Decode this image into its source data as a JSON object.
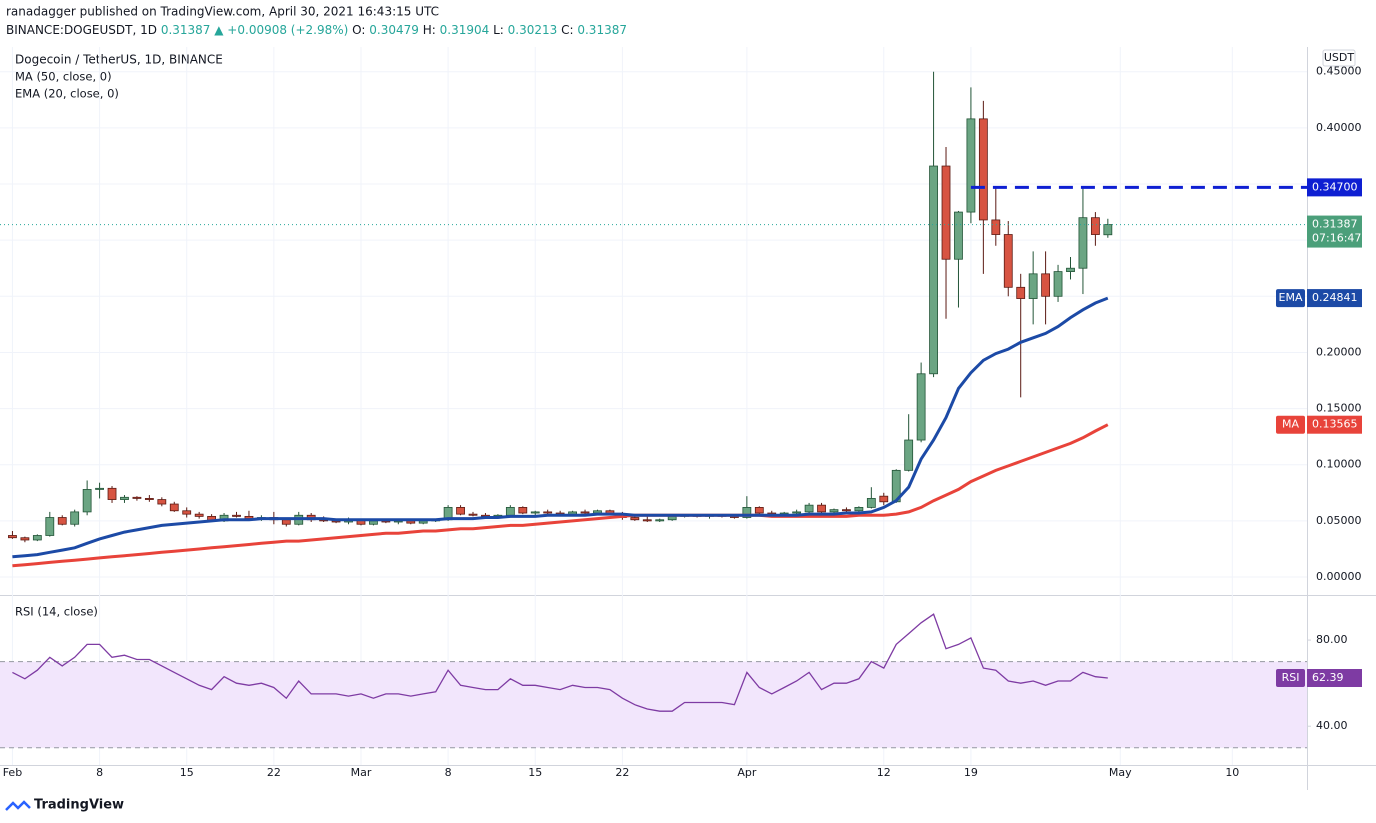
{
  "header": {
    "published": "ranadagger published on TradingView.com, April 30, 2021 16:43:15 UTC",
    "symbol": "BINANCE:DOGEUSDT, 1D",
    "last": "0.31387",
    "change": "▲ +0.00908 (+2.98%)",
    "ohlc": [
      {
        "key": "O:",
        "value": "0.30479"
      },
      {
        "key": "H:",
        "value": "0.31904"
      },
      {
        "key": "L:",
        "value": "0.30213"
      },
      {
        "key": "C:",
        "value": "0.31387"
      }
    ]
  },
  "footer": {
    "brand": "TradingView"
  },
  "chart_data": {
    "type": "candlestick",
    "title": "Dogecoin / TetherUS, 1D, BINANCE",
    "currency": "USDT",
    "up_color": "#6ba583",
    "down_color": "#d75442",
    "x": [
      "2021-02-01",
      "2021-02-02",
      "2021-02-03",
      "2021-02-04",
      "2021-02-05",
      "2021-02-06",
      "2021-02-07",
      "2021-02-08",
      "2021-02-09",
      "2021-02-10",
      "2021-02-11",
      "2021-02-12",
      "2021-02-13",
      "2021-02-14",
      "2021-02-15",
      "2021-02-16",
      "2021-02-17",
      "2021-02-18",
      "2021-02-19",
      "2021-02-20",
      "2021-02-21",
      "2021-02-22",
      "2021-02-23",
      "2021-02-24",
      "2021-02-25",
      "2021-02-26",
      "2021-02-27",
      "2021-02-28",
      "2021-03-01",
      "2021-03-02",
      "2021-03-03",
      "2021-03-04",
      "2021-03-05",
      "2021-03-06",
      "2021-03-07",
      "2021-03-08",
      "2021-03-09",
      "2021-03-10",
      "2021-03-11",
      "2021-03-12",
      "2021-03-13",
      "2021-03-14",
      "2021-03-15",
      "2021-03-16",
      "2021-03-17",
      "2021-03-18",
      "2021-03-19",
      "2021-03-20",
      "2021-03-21",
      "2021-03-22",
      "2021-03-23",
      "2021-03-24",
      "2021-03-25",
      "2021-03-26",
      "2021-03-27",
      "2021-03-28",
      "2021-03-29",
      "2021-03-30",
      "2021-03-31",
      "2021-04-01",
      "2021-04-02",
      "2021-04-03",
      "2021-04-04",
      "2021-04-05",
      "2021-04-06",
      "2021-04-07",
      "2021-04-08",
      "2021-04-09",
      "2021-04-10",
      "2021-04-11",
      "2021-04-12",
      "2021-04-13",
      "2021-04-14",
      "2021-04-15",
      "2021-04-16",
      "2021-04-17",
      "2021-04-18",
      "2021-04-19",
      "2021-04-20",
      "2021-04-21",
      "2021-04-22",
      "2021-04-23",
      "2021-04-24",
      "2021-04-25",
      "2021-04-26",
      "2021-04-27",
      "2021-04-28",
      "2021-04-29",
      "2021-04-30"
    ],
    "open": [
      0.037,
      0.035,
      0.033,
      0.037,
      0.053,
      0.047,
      0.058,
      0.078,
      0.079,
      0.069,
      0.071,
      0.07,
      0.069,
      0.065,
      0.059,
      0.056,
      0.054,
      0.05,
      0.055,
      0.054,
      0.052,
      0.053,
      0.051,
      0.047,
      0.055,
      0.051,
      0.05,
      0.049,
      0.051,
      0.047,
      0.05,
      0.049,
      0.05,
      0.048,
      0.05,
      0.051,
      0.062,
      0.056,
      0.055,
      0.054,
      0.055,
      0.062,
      0.057,
      0.058,
      0.057,
      0.056,
      0.058,
      0.057,
      0.059,
      0.056,
      0.053,
      0.051,
      0.05,
      0.051,
      0.054,
      0.055,
      0.054,
      0.055,
      0.054,
      0.053,
      0.062,
      0.057,
      0.056,
      0.057,
      0.058,
      0.064,
      0.058,
      0.06,
      0.059,
      0.062,
      0.072,
      0.067,
      0.095,
      0.122,
      0.181,
      0.366,
      0.283,
      0.325,
      0.408,
      0.318,
      0.305,
      0.258,
      0.248,
      0.27,
      0.25,
      0.272,
      0.275,
      0.32,
      0.30479
    ],
    "high": [
      0.041,
      0.036,
      0.038,
      0.058,
      0.055,
      0.06,
      0.086,
      0.084,
      0.081,
      0.073,
      0.072,
      0.073,
      0.071,
      0.067,
      0.062,
      0.058,
      0.056,
      0.057,
      0.058,
      0.059,
      0.055,
      0.058,
      0.052,
      0.058,
      0.057,
      0.054,
      0.052,
      0.053,
      0.052,
      0.051,
      0.052,
      0.052,
      0.051,
      0.051,
      0.052,
      0.064,
      0.064,
      0.058,
      0.057,
      0.056,
      0.064,
      0.063,
      0.059,
      0.06,
      0.059,
      0.059,
      0.06,
      0.06,
      0.06,
      0.058,
      0.055,
      0.054,
      0.052,
      0.055,
      0.056,
      0.056,
      0.056,
      0.056,
      0.055,
      0.072,
      0.063,
      0.059,
      0.058,
      0.06,
      0.066,
      0.066,
      0.061,
      0.062,
      0.063,
      0.08,
      0.075,
      0.096,
      0.145,
      0.191,
      0.45,
      0.383,
      0.326,
      0.436,
      0.424,
      0.347,
      0.317,
      0.27,
      0.29,
      0.29,
      0.278,
      0.285,
      0.347,
      0.325,
      0.31904
    ],
    "low": [
      0.034,
      0.031,
      0.032,
      0.036,
      0.046,
      0.045,
      0.055,
      0.07,
      0.066,
      0.066,
      0.068,
      0.067,
      0.063,
      0.058,
      0.053,
      0.052,
      0.049,
      0.049,
      0.053,
      0.051,
      0.05,
      0.047,
      0.045,
      0.046,
      0.049,
      0.049,
      0.048,
      0.047,
      0.046,
      0.046,
      0.048,
      0.047,
      0.047,
      0.047,
      0.049,
      0.05,
      0.055,
      0.054,
      0.053,
      0.052,
      0.054,
      0.056,
      0.055,
      0.056,
      0.055,
      0.055,
      0.056,
      0.056,
      0.055,
      0.051,
      0.05,
      0.049,
      0.049,
      0.05,
      0.053,
      0.053,
      0.052,
      0.053,
      0.052,
      0.052,
      0.056,
      0.055,
      0.055,
      0.055,
      0.057,
      0.055,
      0.057,
      0.058,
      0.058,
      0.061,
      0.064,
      0.066,
      0.094,
      0.12,
      0.178,
      0.23,
      0.24,
      0.315,
      0.27,
      0.295,
      0.25,
      0.16,
      0.225,
      0.225,
      0.245,
      0.265,
      0.252,
      0.295,
      0.30213
    ],
    "close": [
      0.035,
      0.033,
      0.037,
      0.053,
      0.047,
      0.058,
      0.078,
      0.079,
      0.069,
      0.071,
      0.07,
      0.069,
      0.065,
      0.059,
      0.056,
      0.054,
      0.05,
      0.055,
      0.054,
      0.052,
      0.053,
      0.051,
      0.047,
      0.055,
      0.051,
      0.05,
      0.049,
      0.051,
      0.047,
      0.05,
      0.049,
      0.05,
      0.048,
      0.05,
      0.051,
      0.062,
      0.056,
      0.055,
      0.054,
      0.055,
      0.062,
      0.057,
      0.058,
      0.057,
      0.056,
      0.058,
      0.057,
      0.059,
      0.056,
      0.053,
      0.051,
      0.05,
      0.051,
      0.054,
      0.055,
      0.054,
      0.055,
      0.054,
      0.053,
      0.062,
      0.057,
      0.056,
      0.057,
      0.058,
      0.064,
      0.058,
      0.06,
      0.059,
      0.062,
      0.07,
      0.067,
      0.095,
      0.122,
      0.181,
      0.366,
      0.283,
      0.325,
      0.408,
      0.318,
      0.305,
      0.258,
      0.248,
      0.27,
      0.25,
      0.272,
      0.275,
      0.32,
      0.305,
      0.31387
    ],
    "countdown": "07:16:47",
    "series": [
      {
        "name": "MA (50, close, 0)",
        "tag": "MA",
        "color": "#e8433a",
        "values": [
          0.01,
          0.011,
          0.012,
          0.013,
          0.014,
          0.015,
          0.016,
          0.017,
          0.018,
          0.019,
          0.02,
          0.021,
          0.022,
          0.023,
          0.024,
          0.025,
          0.026,
          0.027,
          0.028,
          0.029,
          0.03,
          0.031,
          0.032,
          0.032,
          0.033,
          0.034,
          0.035,
          0.036,
          0.037,
          0.038,
          0.039,
          0.039,
          0.04,
          0.041,
          0.041,
          0.042,
          0.043,
          0.043,
          0.044,
          0.045,
          0.046,
          0.046,
          0.047,
          0.048,
          0.049,
          0.05,
          0.051,
          0.052,
          0.053,
          0.054,
          0.055,
          0.055,
          0.055,
          0.055,
          0.055,
          0.055,
          0.055,
          0.055,
          0.055,
          0.055,
          0.055,
          0.054,
          0.054,
          0.054,
          0.054,
          0.054,
          0.054,
          0.054,
          0.055,
          0.055,
          0.055,
          0.056,
          0.058,
          0.062,
          0.068,
          0.073,
          0.078,
          0.085,
          0.09,
          0.095,
          0.099,
          0.103,
          0.107,
          0.111,
          0.115,
          0.119,
          0.124,
          0.13,
          0.13565
        ]
      },
      {
        "name": "EMA (20, close, 0)",
        "tag": "EMA",
        "color": "#1c4aa6",
        "values": [
          0.018,
          0.019,
          0.02,
          0.022,
          0.024,
          0.026,
          0.03,
          0.034,
          0.037,
          0.04,
          0.042,
          0.044,
          0.046,
          0.047,
          0.048,
          0.049,
          0.05,
          0.051,
          0.051,
          0.051,
          0.052,
          0.052,
          0.052,
          0.052,
          0.052,
          0.052,
          0.051,
          0.051,
          0.051,
          0.051,
          0.051,
          0.051,
          0.051,
          0.051,
          0.051,
          0.052,
          0.052,
          0.052,
          0.053,
          0.053,
          0.054,
          0.054,
          0.054,
          0.055,
          0.055,
          0.055,
          0.055,
          0.056,
          0.056,
          0.056,
          0.055,
          0.055,
          0.055,
          0.055,
          0.055,
          0.055,
          0.055,
          0.055,
          0.055,
          0.055,
          0.055,
          0.055,
          0.055,
          0.055,
          0.056,
          0.056,
          0.056,
          0.057,
          0.057,
          0.058,
          0.062,
          0.068,
          0.08,
          0.105,
          0.122,
          0.142,
          0.168,
          0.182,
          0.193,
          0.199,
          0.203,
          0.209,
          0.213,
          0.217,
          0.223,
          0.231,
          0.238,
          0.244,
          0.24841
        ]
      }
    ],
    "levels": [
      {
        "value": 0.347,
        "label": "0.34700",
        "start": "2021-04-19",
        "color": "#0e1fd2"
      }
    ],
    "ylim": [
      -0.016,
      0.472
    ],
    "yticks": [
      {
        "value": 0,
        "label": "0.00000"
      },
      {
        "value": 0.05,
        "label": "0.05000"
      },
      {
        "value": 0.1,
        "label": "0.10000"
      },
      {
        "value": 0.15,
        "label": "0.15000"
      },
      {
        "value": 0.2,
        "label": "0.20000"
      },
      {
        "value": 0.25,
        "label": "0.25000"
      },
      {
        "value": 0.3,
        "label": "0.30000"
      },
      {
        "value": 0.35,
        "label": "0.35000"
      },
      {
        "value": 0.4,
        "label": "0.40000"
      },
      {
        "value": 0.45,
        "label": "0.45000"
      }
    ],
    "xlim": [
      "2021-01-31",
      "2021-05-16"
    ],
    "xticks": [
      {
        "value": "2021-02-01",
        "label": "Feb"
      },
      {
        "value": "2021-02-08",
        "label": "8"
      },
      {
        "value": "2021-02-15",
        "label": "15"
      },
      {
        "value": "2021-02-22",
        "label": "22"
      },
      {
        "value": "2021-03-01",
        "label": "Mar"
      },
      {
        "value": "2021-03-08",
        "label": "8"
      },
      {
        "value": "2021-03-15",
        "label": "15"
      },
      {
        "value": "2021-03-22",
        "label": "22"
      },
      {
        "value": "2021-04-01",
        "label": "Apr"
      },
      {
        "value": "2021-04-12",
        "label": "12"
      },
      {
        "value": "2021-04-19",
        "label": "19"
      },
      {
        "value": "2021-05-01",
        "label": "May"
      },
      {
        "value": "2021-05-10",
        "label": "10"
      }
    ],
    "grid": true,
    "indicator": {
      "name": "RSI (14, close)",
      "tag": "RSI",
      "color": "#7e3ba3",
      "band_color": "#f2e6fc",
      "bands": [
        30,
        70
      ],
      "values": [
        65,
        62,
        66,
        72,
        68,
        72,
        78,
        78,
        72,
        73,
        71,
        71,
        68,
        65,
        62,
        59,
        57,
        63,
        60,
        59,
        60,
        58,
        53,
        61,
        55,
        55,
        55,
        54,
        55,
        53,
        55,
        55,
        54,
        55,
        56,
        66,
        59,
        58,
        57,
        57,
        62,
        59,
        59,
        58,
        57,
        59,
        58,
        58,
        57,
        53,
        50,
        48,
        47,
        47,
        51,
        51,
        51,
        51,
        50,
        65,
        58,
        55,
        58,
        61,
        65,
        57,
        60,
        60,
        62,
        70,
        67,
        78,
        83,
        88,
        92,
        76,
        78,
        81,
        67,
        66,
        61,
        60,
        61,
        59,
        61,
        61,
        65,
        63,
        62.39
      ],
      "ylim": [
        22,
        100
      ],
      "yticks": [
        {
          "value": 80,
          "label": "80.00"
        },
        {
          "value": 40,
          "label": "40.00"
        }
      ]
    }
  }
}
